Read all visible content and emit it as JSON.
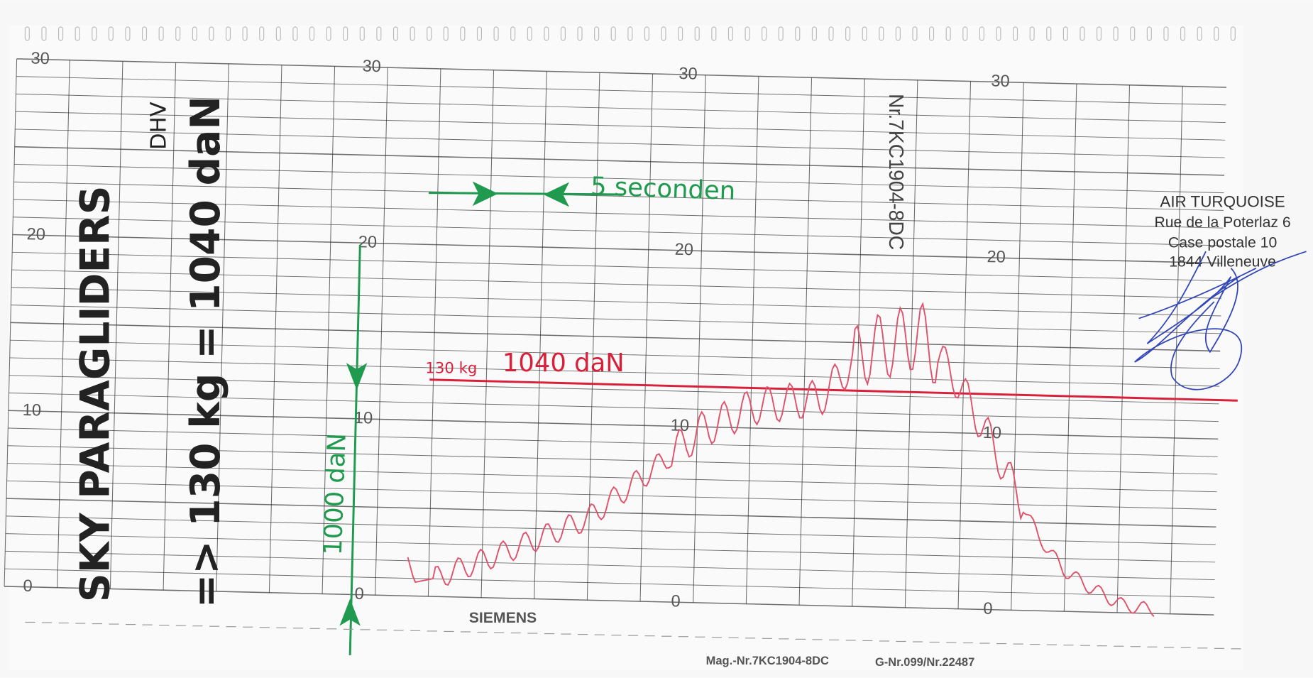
{
  "scales": [
    [
      30,
      20,
      10,
      0
    ],
    [
      30,
      20,
      10,
      0
    ],
    [
      30,
      20,
      10,
      0
    ],
    [
      30,
      20,
      10,
      0
    ]
  ],
  "annotations": {
    "brand": "SKY PARAGLIDERS",
    "certification": "DHV",
    "test": "=> 130 kg = 1040 daN",
    "seconds": "5 seconden",
    "scale": "1000 daN",
    "weight": "130 kg",
    "load": "1040 daN"
  },
  "printed": {
    "serial_vertical": "Nr.7KC1904-8DC",
    "manufacturer": "SIEMENS",
    "mag_number": "Mag.-Nr.7KC1904-8DC",
    "g_number": "G-Nr.099/Nr.22487"
  },
  "stamp": [
    "AIR TURQUOISE",
    "Rue de la Poterlaz 6",
    "Case postale 10",
    "1844 Villeneuve"
  ]
}
